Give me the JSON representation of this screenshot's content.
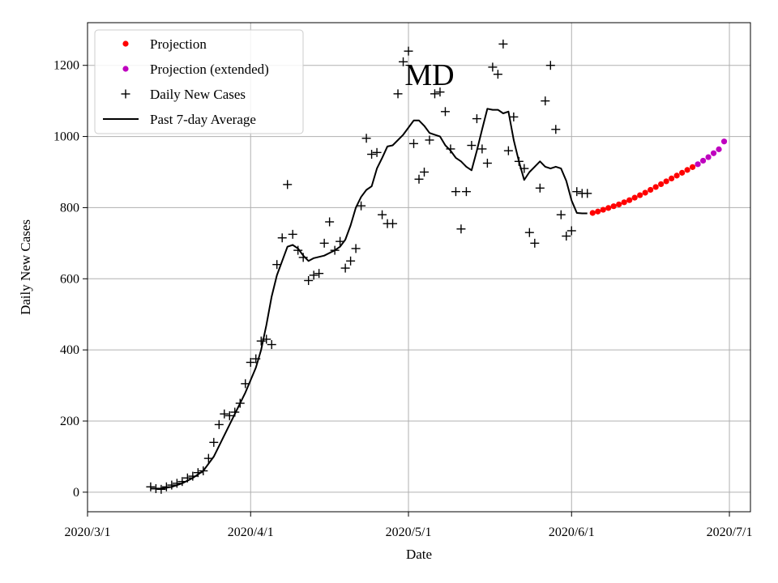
{
  "chart_data": {
    "type": "scatter",
    "title": "MD",
    "xlabel": "Date",
    "ylabel": "Daily New Cases",
    "grid": true,
    "legend_position": "top-left",
    "x_ticks": [
      "2020/3/1",
      "2020/4/1",
      "2020/5/1",
      "2020/6/1",
      "2020/7/1"
    ],
    "y_ticks": [
      0,
      200,
      400,
      600,
      800,
      1000,
      1200
    ],
    "xlim": [
      "2020-03-01",
      "2020-07-05"
    ],
    "ylim": [
      -55,
      1320
    ],
    "colors": {
      "projection": "#ff0000",
      "projection_extended": "#bf00bf",
      "daily": "#000000",
      "average": "#000000",
      "grid": "#b0b0b0"
    },
    "series": [
      {
        "name": "Projection",
        "marker": "dot",
        "x": [
          "2020-06-05",
          "2020-06-06",
          "2020-06-07",
          "2020-06-08",
          "2020-06-09",
          "2020-06-10",
          "2020-06-11",
          "2020-06-12",
          "2020-06-13",
          "2020-06-14",
          "2020-06-15",
          "2020-06-16",
          "2020-06-17",
          "2020-06-18",
          "2020-06-19",
          "2020-06-20",
          "2020-06-21",
          "2020-06-22",
          "2020-06-23",
          "2020-06-24"
        ],
        "y": [
          785,
          789,
          794,
          799,
          804,
          809,
          815,
          821,
          828,
          835,
          842,
          850,
          858,
          866,
          874,
          882,
          890,
          898,
          906,
          914
        ]
      },
      {
        "name": "Projection (extended)",
        "marker": "dot",
        "x": [
          "2020-06-25",
          "2020-06-26",
          "2020-06-27",
          "2020-06-28",
          "2020-06-29",
          "2020-06-30"
        ],
        "y": [
          922,
          932,
          942,
          953,
          964,
          986
        ]
      },
      {
        "name": "Daily New Cases",
        "marker": "plus",
        "x": [
          "2020-03-13",
          "2020-03-14",
          "2020-03-15",
          "2020-03-16",
          "2020-03-17",
          "2020-03-18",
          "2020-03-19",
          "2020-03-20",
          "2020-03-21",
          "2020-03-22",
          "2020-03-23",
          "2020-03-24",
          "2020-03-25",
          "2020-03-26",
          "2020-03-27",
          "2020-03-28",
          "2020-03-29",
          "2020-03-30",
          "2020-03-31",
          "2020-04-01",
          "2020-04-02",
          "2020-04-03",
          "2020-04-04",
          "2020-04-05",
          "2020-04-06",
          "2020-04-07",
          "2020-04-08",
          "2020-04-09",
          "2020-04-10",
          "2020-04-11",
          "2020-04-12",
          "2020-04-13",
          "2020-04-14",
          "2020-04-15",
          "2020-04-16",
          "2020-04-17",
          "2020-04-18",
          "2020-04-19",
          "2020-04-20",
          "2020-04-21",
          "2020-04-22",
          "2020-04-23",
          "2020-04-24",
          "2020-04-25",
          "2020-04-26",
          "2020-04-27",
          "2020-04-28",
          "2020-04-29",
          "2020-04-30",
          "2020-05-01",
          "2020-05-02",
          "2020-05-03",
          "2020-05-04",
          "2020-05-05",
          "2020-05-06",
          "2020-05-07",
          "2020-05-08",
          "2020-05-09",
          "2020-05-10",
          "2020-05-11",
          "2020-05-12",
          "2020-05-13",
          "2020-05-14",
          "2020-05-15",
          "2020-05-16",
          "2020-05-17",
          "2020-05-18",
          "2020-05-19",
          "2020-05-20",
          "2020-05-21",
          "2020-05-22",
          "2020-05-23",
          "2020-05-24",
          "2020-05-25",
          "2020-05-26",
          "2020-05-27",
          "2020-05-28",
          "2020-05-29",
          "2020-05-30",
          "2020-05-31",
          "2020-06-01",
          "2020-06-02",
          "2020-06-03",
          "2020-06-04"
        ],
        "y": [
          15,
          10,
          8,
          15,
          20,
          25,
          30,
          40,
          45,
          55,
          60,
          95,
          140,
          190,
          220,
          215,
          225,
          250,
          305,
          365,
          375,
          425,
          430,
          415,
          640,
          715,
          865,
          725,
          680,
          660,
          595,
          610,
          615,
          700,
          760,
          680,
          705,
          630,
          650,
          685,
          805,
          995,
          950,
          955,
          780,
          755,
          755,
          1120,
          1210,
          1240,
          980,
          880,
          900,
          990,
          1120,
          1125,
          1070,
          965,
          845,
          740,
          845,
          975,
          1050,
          965,
          925,
          1195,
          1175,
          1260,
          960,
          1055,
          930,
          910,
          730,
          700,
          855,
          1100,
          1200,
          1020,
          780,
          720,
          735,
          845,
          840,
          840
        ]
      },
      {
        "name": "Past 7-day Average",
        "marker": "line",
        "x": [
          "2020-03-13",
          "2020-03-15",
          "2020-03-17",
          "2020-03-19",
          "2020-03-21",
          "2020-03-23",
          "2020-03-25",
          "2020-03-27",
          "2020-03-29",
          "2020-03-31",
          "2020-04-02",
          "2020-04-03",
          "2020-04-04",
          "2020-04-05",
          "2020-04-06",
          "2020-04-07",
          "2020-04-08",
          "2020-04-09",
          "2020-04-10",
          "2020-04-11",
          "2020-04-12",
          "2020-04-13",
          "2020-04-15",
          "2020-04-17",
          "2020-04-18",
          "2020-04-19",
          "2020-04-20",
          "2020-04-21",
          "2020-04-22",
          "2020-04-23",
          "2020-04-24",
          "2020-04-25",
          "2020-04-26",
          "2020-04-27",
          "2020-04-28",
          "2020-04-29",
          "2020-04-30",
          "2020-05-01",
          "2020-05-02",
          "2020-05-03",
          "2020-05-04",
          "2020-05-05",
          "2020-05-06",
          "2020-05-07",
          "2020-05-08",
          "2020-05-09",
          "2020-05-10",
          "2020-05-11",
          "2020-05-12",
          "2020-05-13",
          "2020-05-14",
          "2020-05-15",
          "2020-05-16",
          "2020-05-17",
          "2020-05-18",
          "2020-05-19",
          "2020-05-20",
          "2020-05-21",
          "2020-05-22",
          "2020-05-23",
          "2020-05-24",
          "2020-05-25",
          "2020-05-26",
          "2020-05-27",
          "2020-05-28",
          "2020-05-29",
          "2020-05-30",
          "2020-05-31",
          "2020-06-01",
          "2020-06-02",
          "2020-06-03",
          "2020-06-04"
        ],
        "y": [
          10,
          10,
          15,
          25,
          40,
          60,
          100,
          160,
          220,
          280,
          350,
          400,
          470,
          550,
          610,
          650,
          690,
          695,
          685,
          665,
          650,
          658,
          665,
          680,
          690,
          710,
          750,
          800,
          830,
          850,
          860,
          910,
          940,
          972,
          975,
          990,
          1005,
          1025,
          1045,
          1045,
          1030,
          1010,
          1005,
          1000,
          975,
          960,
          940,
          930,
          915,
          905,
          960,
          1020,
          1078,
          1075,
          1075,
          1065,
          1070,
          990,
          930,
          878,
          900,
          915,
          930,
          915,
          910,
          915,
          910,
          875,
          820,
          785,
          784,
          784
        ]
      }
    ]
  }
}
